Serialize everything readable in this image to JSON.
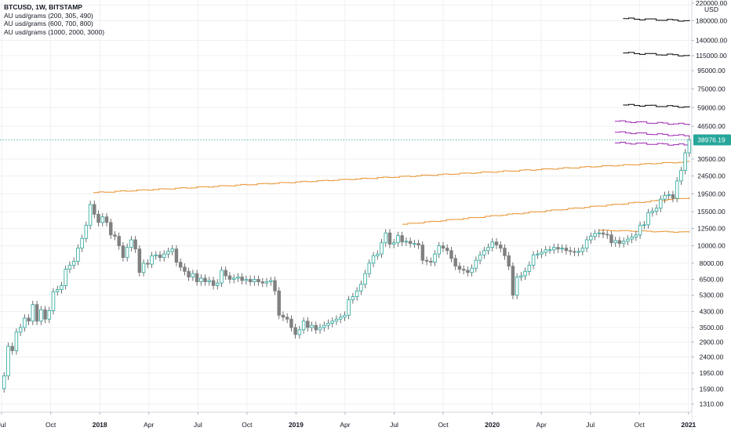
{
  "legend": {
    "title": "BTCUSD, 1W, BITSTAMP",
    "studies": [
      "AU usd/grams (200, 305, 490)",
      "AU usd/grams (600, 700, 800)",
      "AU usd/grams (1000, 2000, 3000)"
    ]
  },
  "colors": {
    "up": "#26a69a",
    "down": "#808080",
    "orange": "#e8912d",
    "purple": "#9c27b0",
    "black": "#000000",
    "grid": "#eef0f3",
    "last_price": "#26a69a"
  },
  "chart_data": {
    "type": "candlestick",
    "title": "BTCUSD, 1W, BITSTAMP",
    "y_axis": {
      "scale": "log",
      "unit_label": "USD",
      "ticks": [
        "220000.00",
        "180000.00",
        "140000.00",
        "115000.00",
        "95000.00",
        "75000.00",
        "59000.00",
        "46500.00",
        "38976.19",
        "30500.00",
        "24500.00",
        "19500.00",
        "15500.00",
        "12500.00",
        "10000.00",
        "8000.00",
        "6500.00",
        "5300.00",
        "4300.00",
        "3500.00",
        "2900.00",
        "2400.00",
        "1950.00",
        "1590.00",
        "1310.00"
      ],
      "tick_values": [
        220000,
        180000,
        140000,
        115000,
        95000,
        75000,
        59000,
        46500,
        30500,
        24500,
        19500,
        15500,
        12500,
        10000,
        8000,
        6500,
        5300,
        4300,
        3500,
        2900,
        2400,
        1950,
        1590,
        1310
      ],
      "range": [
        1180,
        235000
      ]
    },
    "x_axis": {
      "ticks": [
        "Jul",
        "Oct",
        "2018",
        "Apr",
        "Jul",
        "Oct",
        "2019",
        "Apr",
        "Jul",
        "Oct",
        "2020",
        "Apr",
        "Jul",
        "Oct",
        "2021"
      ],
      "tick_months": [
        0,
        3,
        6,
        9,
        12,
        15,
        18,
        21,
        24,
        27,
        30,
        33,
        36,
        39,
        42
      ],
      "range_months": [
        -0.1,
        42.2
      ]
    },
    "last_price": "38976.19",
    "last_price_value": 38976.19,
    "weekly_close": [
      1880,
      2750,
      2600,
      3300,
      3500,
      3950,
      3800,
      4700,
      3800,
      4400,
      3900,
      4350,
      5550,
      5700,
      6000,
      7400,
      7800,
      8200,
      9700,
      11000,
      13000,
      17000,
      15000,
      13500,
      14500,
      13500,
      11500,
      11300,
      10000,
      8600,
      9800,
      10800,
      9600,
      7100,
      8000,
      7900,
      8800,
      8900,
      8600,
      9000,
      9300,
      9600,
      8100,
      7600,
      7200,
      6700,
      7000,
      6300,
      6600,
      6300,
      6400,
      6000,
      6200,
      7300,
      6800,
      6500,
      6600,
      6700,
      6400,
      6500,
      6300,
      6500,
      6300,
      6200,
      6300,
      6400,
      5600,
      4100,
      4000,
      3900,
      3500,
      3200,
      3400,
      3800,
      3500,
      3600,
      3400,
      3500,
      3600,
      3700,
      3800,
      3900,
      4000,
      4100,
      5000,
      5200,
      5600,
      6100,
      7000,
      8000,
      8800,
      9000,
      10400,
      11800,
      10200,
      10400,
      11400,
      10500,
      10600,
      10300,
      10300,
      10100,
      8300,
      8200,
      8100,
      9000,
      10000,
      9700,
      9400,
      8500,
      7700,
      7400,
      7300,
      7100,
      7500,
      8300,
      8900,
      9400,
      9800,
      10500,
      10100,
      9700,
      8800,
      7700,
      5300,
      6700,
      6800,
      7200,
      7800,
      8900,
      9000,
      9200,
      9500,
      9500,
      9800,
      9600,
      9700,
      9400,
      9300,
      9200,
      9300,
      9700,
      10800,
      11300,
      11700,
      11800,
      11600,
      11500,
      10400,
      10700,
      10300,
      10600,
      10900,
      11200,
      11500,
      13000,
      13100,
      15300,
      15600,
      16200,
      18200,
      19100,
      19300,
      18400,
      23000,
      26300,
      33000,
      38976.19
    ],
    "series": [
      {
        "name": "AU usd/grams (200, 305, 490)",
        "color": "black",
        "levels": [
          183000,
          117000,
          60000
        ]
      },
      {
        "name": "AU usd/grams (600, 700, 800)",
        "color": "purple",
        "levels": [
          50000,
          43000,
          37500
        ]
      },
      {
        "name": "AU usd/grams (1000, 2000, 3000)",
        "color": "orange",
        "levels": [
          19500,
          13000,
          6500
        ]
      }
    ]
  }
}
